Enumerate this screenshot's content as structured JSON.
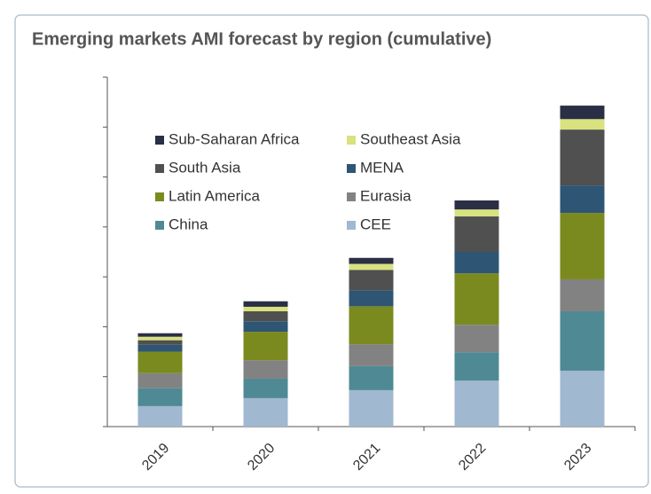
{
  "chart_data": {
    "type": "stacked_bar",
    "title": "Emerging markets AMI forecast by region (cumulative)",
    "categories": [
      "2019",
      "2020",
      "2021",
      "2022",
      "2023"
    ],
    "series": [
      {
        "name": "CEE",
        "color": "#a0b8d0",
        "values": [
          0.41,
          0.57,
          0.73,
          0.92,
          1.12
        ]
      },
      {
        "name": "China",
        "color": "#4f8a94",
        "values": [
          0.36,
          0.39,
          0.48,
          0.57,
          1.19
        ]
      },
      {
        "name": "Eurasia",
        "color": "#828282",
        "values": [
          0.3,
          0.37,
          0.44,
          0.55,
          0.64
        ]
      },
      {
        "name": "Latin America",
        "color": "#7b8a1f",
        "values": [
          0.43,
          0.57,
          0.76,
          1.03,
          1.33
        ]
      },
      {
        "name": "MENA",
        "color": "#2e5573",
        "values": [
          0.14,
          0.21,
          0.32,
          0.43,
          0.55
        ]
      },
      {
        "name": "South Asia",
        "color": "#505050",
        "values": [
          0.09,
          0.2,
          0.41,
          0.71,
          1.12
        ]
      },
      {
        "name": "Southeast Asia",
        "color": "#d8e27f",
        "values": [
          0.07,
          0.09,
          0.12,
          0.14,
          0.21
        ]
      },
      {
        "name": "Sub-Saharan Africa",
        "color": "#2b2f45",
        "values": [
          0.07,
          0.11,
          0.12,
          0.18,
          0.27
        ]
      }
    ],
    "ylim": [
      0,
      7
    ],
    "yticks": [
      0,
      1,
      2,
      3,
      4,
      5,
      6,
      7
    ]
  }
}
